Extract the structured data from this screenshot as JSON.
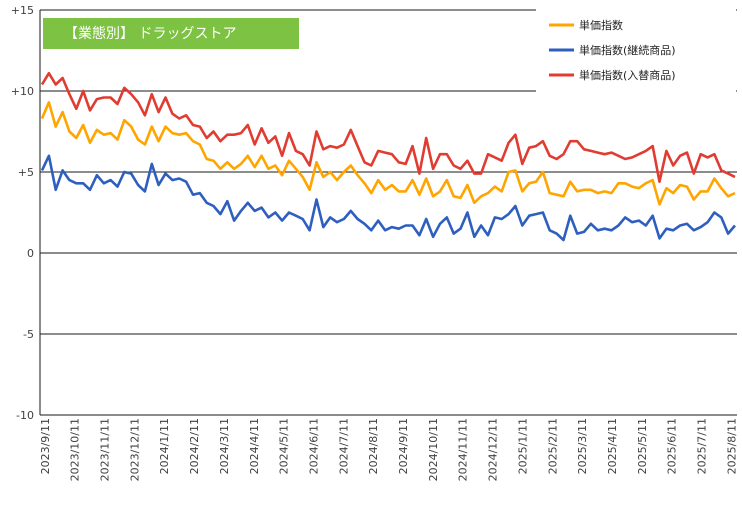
{
  "chart_data": {
    "type": "line",
    "title": "【業態別】 ドラッグストア",
    "title_bg_color": "#7DC242",
    "ylim": [
      -10,
      15
    ],
    "yticks": [
      15,
      10,
      5,
      0,
      -5,
      -10
    ],
    "ytick_labels": [
      "+15",
      "+10",
      "+5",
      "0",
      "-5",
      "-10"
    ],
    "grid": true,
    "legend_position": "top-right",
    "x_tick_labels": [
      "2023/9/11",
      "2023/10/11",
      "2023/11/11",
      "2023/12/11",
      "2024/1/11",
      "2024/2/11",
      "2024/3/11",
      "2024/4/11",
      "2024/5/11",
      "2024/6/11",
      "2024/7/11",
      "2024/8/11",
      "2024/9/11",
      "2024/10/11",
      "2024/11/11",
      "2024/12/11",
      "2025/1/11",
      "2025/2/11",
      "2025/3/11",
      "2025/4/11",
      "2025/5/11",
      "2025/6/11",
      "2025/7/11",
      "2025/8/11"
    ],
    "series": [
      {
        "name": "単価指数",
        "color": "#FFA500",
        "values": [
          8.3,
          9.3,
          7.8,
          8.7,
          7.5,
          7.1,
          7.9,
          6.8,
          7.6,
          7.3,
          7.4,
          7.0,
          8.2,
          7.8,
          7.0,
          6.7,
          7.8,
          6.9,
          7.8,
          7.4,
          7.3,
          7.4,
          6.9,
          6.7,
          5.8,
          5.7,
          5.2,
          5.6,
          5.2,
          5.5,
          6.0,
          5.3,
          6.0,
          5.2,
          5.4,
          4.8,
          5.7,
          5.2,
          4.7,
          3.9,
          5.6,
          4.7,
          5.0,
          4.5,
          5.0,
          5.4,
          4.8,
          4.3,
          3.7,
          4.5,
          3.9,
          4.2,
          3.8,
          3.8,
          4.5,
          3.6,
          4.6,
          3.5,
          3.8,
          4.5,
          3.5,
          3.4,
          4.2,
          3.1,
          3.5,
          3.7,
          4.1,
          3.8,
          5.0,
          5.1,
          3.8,
          4.3,
          4.4,
          5.0,
          3.7,
          3.6,
          3.5,
          4.4,
          3.8,
          3.9,
          3.9,
          3.7,
          3.8,
          3.7,
          4.3,
          4.3,
          4.1,
          4.0,
          4.3,
          4.5,
          3.0,
          4.0,
          3.7,
          4.2,
          4.1,
          3.3,
          3.8,
          3.8,
          4.6,
          4.0,
          3.5,
          3.7
        ]
      },
      {
        "name": "単価指数(継続商品)",
        "color": "#2E5FBF",
        "values": [
          5.1,
          6.0,
          3.9,
          5.1,
          4.5,
          4.3,
          4.3,
          3.9,
          4.8,
          4.3,
          4.5,
          4.1,
          5.0,
          4.9,
          4.2,
          3.8,
          5.5,
          4.2,
          4.9,
          4.5,
          4.6,
          4.4,
          3.6,
          3.7,
          3.1,
          2.9,
          2.4,
          3.2,
          2.0,
          2.6,
          3.1,
          2.6,
          2.8,
          2.2,
          2.5,
          2.0,
          2.5,
          2.3,
          2.1,
          1.4,
          3.3,
          1.6,
          2.2,
          1.9,
          2.1,
          2.6,
          2.1,
          1.8,
          1.4,
          2.0,
          1.4,
          1.6,
          1.5,
          1.7,
          1.7,
          1.1,
          2.1,
          1.0,
          1.8,
          2.2,
          1.2,
          1.5,
          2.5,
          1.0,
          1.7,
          1.1,
          2.2,
          2.1,
          2.4,
          2.9,
          1.7,
          2.3,
          2.4,
          2.5,
          1.4,
          1.2,
          0.8,
          2.3,
          1.2,
          1.3,
          1.8,
          1.4,
          1.5,
          1.4,
          1.7,
          2.2,
          1.9,
          2.0,
          1.7,
          2.3,
          0.9,
          1.5,
          1.4,
          1.7,
          1.8,
          1.4,
          1.6,
          1.9,
          2.5,
          2.2,
          1.2,
          1.7
        ]
      },
      {
        "name": "単価指数(入替商品)",
        "color": "#E03C31",
        "values": [
          10.4,
          11.1,
          10.4,
          10.8,
          9.8,
          8.9,
          10.0,
          8.8,
          9.5,
          9.6,
          9.6,
          9.2,
          10.2,
          9.8,
          9.3,
          8.5,
          9.8,
          8.7,
          9.6,
          8.6,
          8.3,
          8.5,
          7.9,
          7.8,
          7.1,
          7.5,
          6.9,
          7.3,
          7.3,
          7.4,
          7.9,
          6.7,
          7.7,
          6.8,
          7.2,
          6.0,
          7.4,
          6.3,
          6.1,
          5.4,
          7.5,
          6.4,
          6.6,
          6.5,
          6.7,
          7.6,
          6.6,
          5.6,
          5.4,
          6.3,
          6.2,
          6.1,
          5.6,
          5.5,
          6.6,
          4.9,
          7.1,
          5.2,
          6.1,
          6.1,
          5.4,
          5.2,
          5.7,
          4.9,
          4.9,
          6.1,
          5.9,
          5.7,
          6.8,
          7.3,
          5.5,
          6.5,
          6.6,
          6.9,
          6.0,
          5.8,
          6.1,
          6.9,
          6.9,
          6.4,
          6.3,
          6.2,
          6.1,
          6.2,
          6.0,
          5.8,
          5.9,
          6.1,
          6.3,
          6.6,
          4.4,
          6.3,
          5.4,
          6.0,
          6.2,
          4.9,
          6.1,
          5.9,
          6.1,
          5.1,
          4.9,
          4.7
        ]
      }
    ]
  }
}
